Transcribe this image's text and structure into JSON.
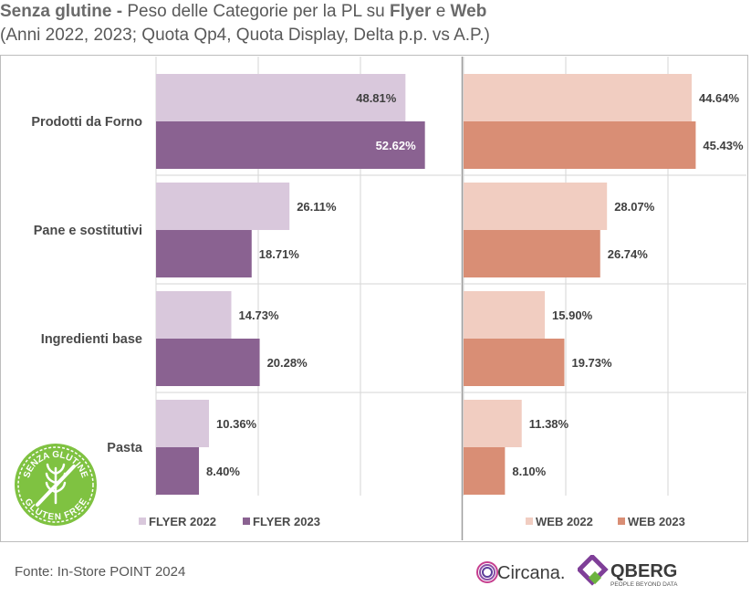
{
  "title": {
    "brand": "Senza glutine -",
    "part1": " Peso delle Categorie per la PL su ",
    "flyer": "Flyer",
    "and": " e ",
    "web": "Web",
    "subtitle": "(Anni 2022, 2023; Quota Qp4, Quota Display, Delta p.p. vs A.P.)"
  },
  "colors": {
    "flyer2022": "#d9c8dc",
    "flyer2023": "#8a6291",
    "web2022": "#f1cdc1",
    "web2023": "#d98e75"
  },
  "chart_data": [
    {
      "type": "bar",
      "orientation": "horizontal",
      "panel": "Flyer",
      "categories": [
        "Prodotti da Forno",
        "Pane e sostitutivi",
        "Ingredienti base",
        "Pasta"
      ],
      "series": [
        {
          "name": "FLYER 2022",
          "values": [
            48.81,
            26.11,
            14.73,
            10.36
          ],
          "labels": [
            "48.81%",
            "26.11%",
            "14.73%",
            "10.36%"
          ]
        },
        {
          "name": "FLYER 2023",
          "values": [
            52.62,
            18.71,
            20.28,
            8.4
          ],
          "labels": [
            "52.62%",
            "18.71%",
            "20.28%",
            "8.40%"
          ]
        }
      ],
      "xlim": [
        0,
        60
      ],
      "unit": "%"
    },
    {
      "type": "bar",
      "orientation": "horizontal",
      "panel": "Web",
      "categories": [
        "Prodotti da Forno",
        "Pane e sostitutivi",
        "Ingredienti base",
        "Pasta"
      ],
      "series": [
        {
          "name": "WEB 2022",
          "values": [
            44.64,
            28.07,
            15.9,
            11.38
          ],
          "labels": [
            "44.64%",
            "28.07%",
            "15.90%",
            "11.38%"
          ]
        },
        {
          "name": "WEB 2023",
          "values": [
            45.43,
            26.74,
            19.73,
            8.1
          ],
          "labels": [
            "45.43%",
            "26.74%",
            "19.73%",
            "8.10%"
          ]
        }
      ],
      "xlim": [
        0,
        60
      ],
      "unit": "%"
    }
  ],
  "legend": {
    "flyer2022": "FLYER 2022",
    "flyer2023": "FLYER 2023",
    "web2022": "WEB 2022",
    "web2023": "WEB 2023"
  },
  "badge": {
    "top": "SENZA GLUTINE",
    "bottom": "GLUTEN FREE"
  },
  "source": "Fonte: In-Store POINT 2024",
  "logos": {
    "circana": "Circana.",
    "oberg": "QBERG",
    "oberg_tagline": "PEOPLE BEYOND DATA"
  }
}
